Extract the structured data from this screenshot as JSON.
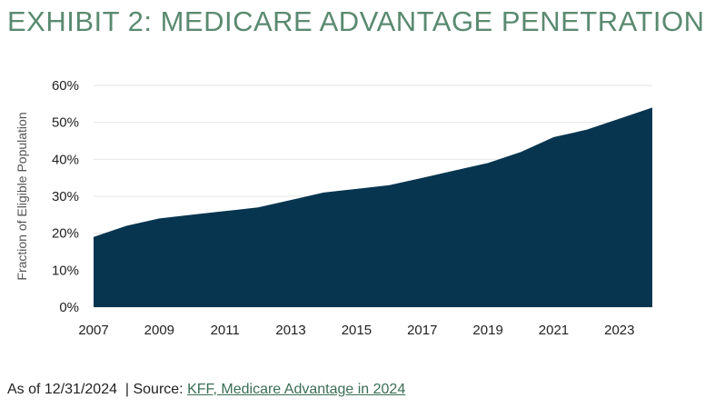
{
  "header": {
    "title": "EXHIBIT 2: MEDICARE ADVANTAGE PENETRATION"
  },
  "footer": {
    "as_of": "As of 12/31/2024",
    "separator": "  | Source: ",
    "source_link": "KFF, Medicare Advantage in 2024"
  },
  "colors": {
    "title": "#5a8a70",
    "area": "#073550",
    "link": "#3b6e55",
    "grid": "#e6e6e6"
  },
  "chart_data": {
    "type": "area",
    "title": "",
    "xlabel": "",
    "ylabel": "Fraction of Eligible Population",
    "x": [
      2007,
      2008,
      2009,
      2010,
      2011,
      2012,
      2013,
      2014,
      2015,
      2016,
      2017,
      2018,
      2019,
      2020,
      2021,
      2022,
      2023,
      2024
    ],
    "values": [
      19,
      22,
      24,
      25,
      26,
      27,
      29,
      31,
      32,
      33,
      35,
      37,
      39,
      42,
      46,
      48,
      51,
      54
    ],
    "xticks": [
      2007,
      2009,
      2011,
      2013,
      2015,
      2017,
      2019,
      2021,
      2023
    ],
    "yticks": [
      0,
      10,
      20,
      30,
      40,
      50,
      60
    ],
    "ytick_labels": [
      "0%",
      "10%",
      "20%",
      "30%",
      "40%",
      "50%",
      "60%"
    ],
    "xlim": [
      2007,
      2024
    ],
    "ylim": [
      0,
      60
    ],
    "grid": true,
    "legend": "none"
  }
}
